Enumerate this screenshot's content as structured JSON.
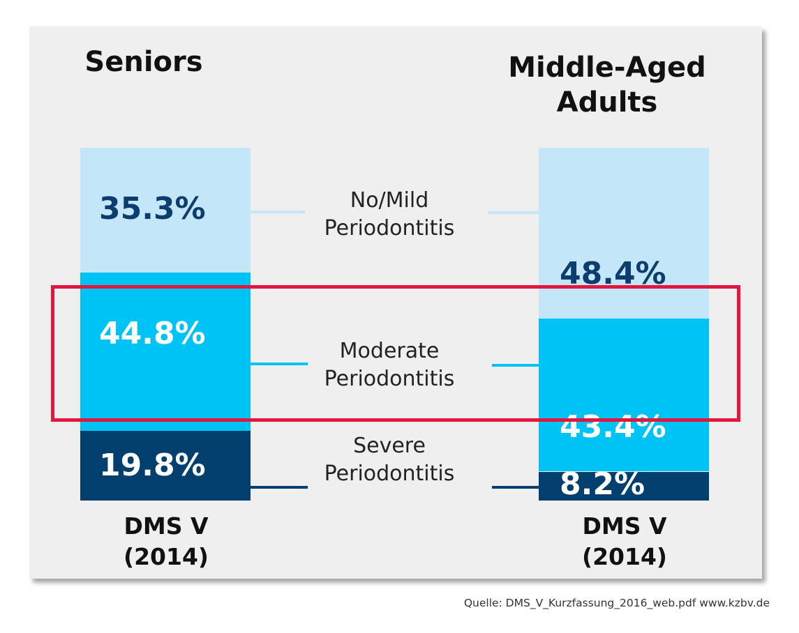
{
  "chart_data": {
    "type": "bar",
    "stacked": true,
    "categories": [
      "Seniors",
      "Middle-Aged Adults"
    ],
    "category_footers": [
      "DMS V (2014)",
      "DMS V (2014)"
    ],
    "series": [
      {
        "name": "No/Mild Periodontitis",
        "values": [
          35.3,
          48.4
        ],
        "labels": [
          "35.3%",
          "48.4%"
        ],
        "color": "#c4e6f9",
        "label_color": "#0d3d6e"
      },
      {
        "name": "Moderate Periodontitis",
        "values": [
          44.8,
          43.4
        ],
        "labels": [
          "44.8%",
          "43.4%"
        ],
        "color": "#00c3f5",
        "label_color": "#ffffff"
      },
      {
        "name": "Severe Periodontitis",
        "values": [
          19.8,
          8.2
        ],
        "labels": [
          "19.8%",
          "8.2%"
        ],
        "color": "#003f6e",
        "label_color": "#ffffff"
      }
    ],
    "ylim": [
      0,
      100
    ],
    "legend_placement": "center-between-bars",
    "highlight": {
      "series": "Moderate Periodontitis",
      "color": "#e2163e"
    }
  },
  "titles": {
    "left": "Seniors",
    "right_line1": "Middle-Aged",
    "right_line2": "Adults"
  },
  "legend_labels": [
    {
      "line1": "No/Mild",
      "line2": "Periodontitis"
    },
    {
      "line1": "Moderate",
      "line2": "Periodontitis"
    },
    {
      "line1": "Severe",
      "line2": "Periodontitis"
    }
  ],
  "footers": {
    "left_line1": "DMS V",
    "left_line2": "(2014)",
    "right_line1": "DMS V",
    "right_line2": "(2014)"
  },
  "source": "Quelle: DMS_V_Kurzfassung_2016_web.pdf www.kzbv.de"
}
